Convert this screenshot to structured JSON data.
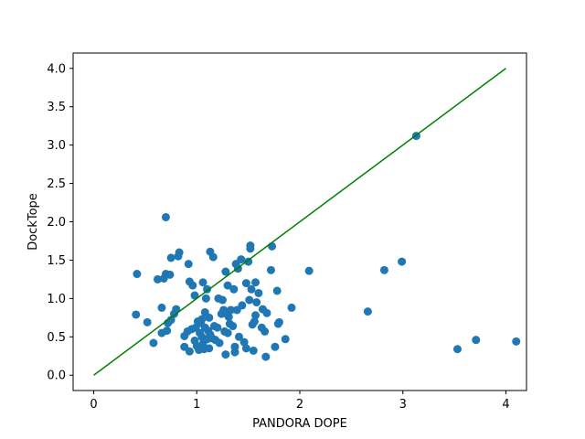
{
  "chart_data": {
    "type": "scatter",
    "title": "",
    "xlabel": "PANDORA DOPE",
    "ylabel": "DockTope",
    "xlim": [
      -0.2,
      4.2
    ],
    "ylim": [
      -0.2,
      4.2
    ],
    "xticks": [
      0,
      1,
      2,
      3,
      4
    ],
    "xtick_labels": [
      "0",
      "1",
      "2",
      "3",
      "4"
    ],
    "yticks": [
      0.0,
      0.5,
      1.0,
      1.5,
      2.0,
      2.5,
      3.0,
      3.5,
      4.0
    ],
    "ytick_labels": [
      "0.0",
      "0.5",
      "1.0",
      "1.5",
      "2.0",
      "2.5",
      "3.0",
      "3.5",
      "4.0"
    ],
    "grid": false,
    "colors": {
      "points": "#1f77b4",
      "line": "#008000",
      "axes": "#000000"
    },
    "reference_line": {
      "name": "y = x",
      "x": [
        0,
        4
      ],
      "y": [
        0,
        4
      ]
    },
    "series": [
      {
        "name": "points",
        "points": [
          [
            0.7,
            2.06
          ],
          [
            0.42,
            1.32
          ],
          [
            0.41,
            0.79
          ],
          [
            0.52,
            0.69
          ],
          [
            0.58,
            0.42
          ],
          [
            0.62,
            1.25
          ],
          [
            0.66,
            0.88
          ],
          [
            0.66,
            0.55
          ],
          [
            0.68,
            1.26
          ],
          [
            0.7,
            1.32
          ],
          [
            0.71,
            0.58
          ],
          [
            0.72,
            0.68
          ],
          [
            0.75,
            0.72
          ],
          [
            0.74,
            1.31
          ],
          [
            0.75,
            1.53
          ],
          [
            0.78,
            0.8
          ],
          [
            0.8,
            0.86
          ],
          [
            0.82,
            1.55
          ],
          [
            0.83,
            1.6
          ],
          [
            0.88,
            0.51
          ],
          [
            0.88,
            0.37
          ],
          [
            0.91,
            0.57
          ],
          [
            0.92,
            1.45
          ],
          [
            0.93,
            1.22
          ],
          [
            0.93,
            0.31
          ],
          [
            0.95,
            0.6
          ],
          [
            0.96,
            1.17
          ],
          [
            0.98,
            1.04
          ],
          [
            0.98,
            0.45
          ],
          [
            0.99,
            0.62
          ],
          [
            1.0,
            0.38
          ],
          [
            1.01,
            0.7
          ],
          [
            1.02,
            0.33
          ],
          [
            1.03,
            0.55
          ],
          [
            1.04,
            0.68
          ],
          [
            1.05,
            0.73
          ],
          [
            1.05,
            0.5
          ],
          [
            1.06,
            1.21
          ],
          [
            1.06,
            0.41
          ],
          [
            1.07,
            0.34
          ],
          [
            1.08,
            0.82
          ],
          [
            1.08,
            0.62
          ],
          [
            1.09,
            1.0
          ],
          [
            1.1,
            1.12
          ],
          [
            1.1,
            0.47
          ],
          [
            1.11,
            0.58
          ],
          [
            1.12,
            0.35
          ],
          [
            1.12,
            0.75
          ],
          [
            1.13,
            0.53
          ],
          [
            1.13,
            1.61
          ],
          [
            1.15,
            0.48
          ],
          [
            1.16,
            1.54
          ],
          [
            1.17,
            0.64
          ],
          [
            1.18,
            0.46
          ],
          [
            1.2,
            0.62
          ],
          [
            1.21,
            1.0
          ],
          [
            1.22,
            0.42
          ],
          [
            1.24,
            0.8
          ],
          [
            1.25,
            0.98
          ],
          [
            1.26,
            0.85
          ],
          [
            1.27,
            0.57
          ],
          [
            1.28,
            1.35
          ],
          [
            1.28,
            0.27
          ],
          [
            1.29,
            0.8
          ],
          [
            1.3,
            1.17
          ],
          [
            1.3,
            0.55
          ],
          [
            1.31,
            0.76
          ],
          [
            1.32,
            0.67
          ],
          [
            1.33,
            0.85
          ],
          [
            1.35,
            0.64
          ],
          [
            1.36,
            1.12
          ],
          [
            1.37,
            0.37
          ],
          [
            1.37,
            0.3
          ],
          [
            1.38,
            1.45
          ],
          [
            1.39,
            0.85
          ],
          [
            1.4,
            1.39
          ],
          [
            1.41,
            0.5
          ],
          [
            1.43,
            1.51
          ],
          [
            1.44,
            0.91
          ],
          [
            1.46,
            0.43
          ],
          [
            1.48,
            0.35
          ],
          [
            1.48,
            1.2
          ],
          [
            1.5,
            1.48
          ],
          [
            1.51,
            0.98
          ],
          [
            1.52,
            1.65
          ],
          [
            1.52,
            1.69
          ],
          [
            1.53,
            1.12
          ],
          [
            1.54,
            0.66
          ],
          [
            1.55,
            0.32
          ],
          [
            1.56,
            0.7
          ],
          [
            1.57,
            0.78
          ],
          [
            1.57,
            1.21
          ],
          [
            1.58,
            0.95
          ],
          [
            1.6,
            1.07
          ],
          [
            1.63,
            0.62
          ],
          [
            1.64,
            0.86
          ],
          [
            1.66,
            0.57
          ],
          [
            1.67,
            0.24
          ],
          [
            1.68,
            0.81
          ],
          [
            1.72,
            1.37
          ],
          [
            1.73,
            1.68
          ],
          [
            1.76,
            0.37
          ],
          [
            1.78,
            1.1
          ],
          [
            1.79,
            0.67
          ],
          [
            1.8,
            0.69
          ],
          [
            1.86,
            0.47
          ],
          [
            1.92,
            0.88
          ],
          [
            2.09,
            1.36
          ],
          [
            2.66,
            0.83
          ],
          [
            2.82,
            1.37
          ],
          [
            2.99,
            1.48
          ],
          [
            3.13,
            3.12
          ],
          [
            3.53,
            0.34
          ],
          [
            3.71,
            0.46
          ],
          [
            4.1,
            0.44
          ]
        ]
      }
    ]
  }
}
